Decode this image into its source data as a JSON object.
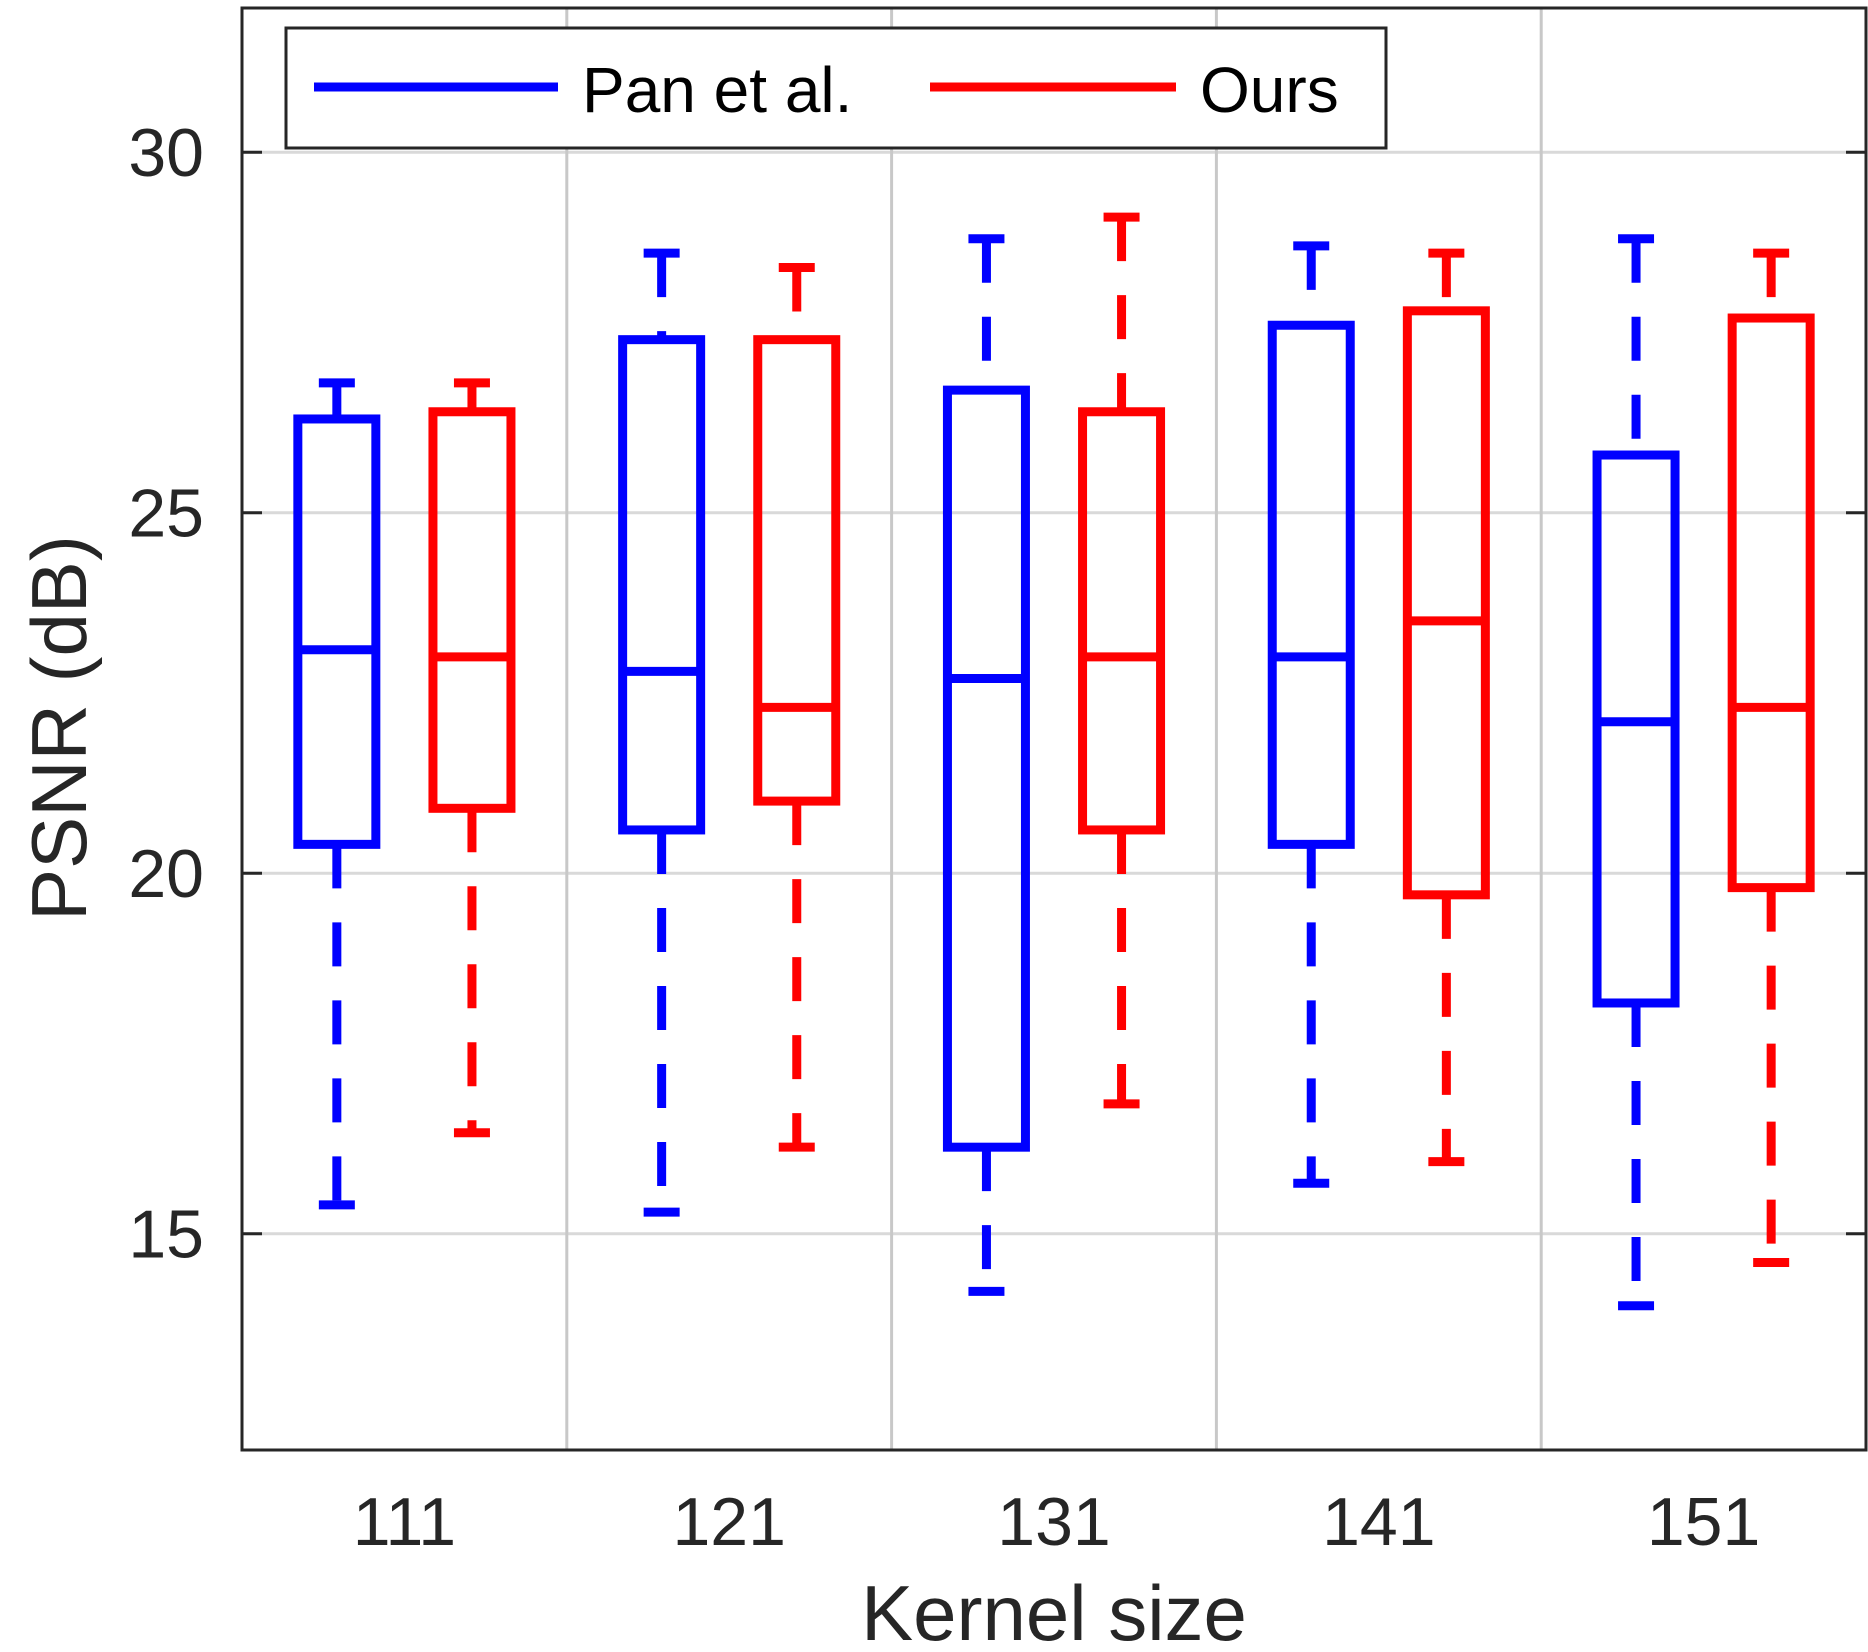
{
  "chart_data": {
    "type": "box",
    "xlabel": "Kernel size",
    "ylabel": "PSNR (dB)",
    "categories": [
      "111",
      "121",
      "131",
      "141",
      "151"
    ],
    "ylim": [
      12.0,
      32.0
    ],
    "yticks": [
      15,
      20,
      25,
      30
    ],
    "grid": true,
    "legend": {
      "placement": "top-left",
      "orientation": "horizontal"
    },
    "series": [
      {
        "name": "Pan et al.",
        "color": "#0000ff",
        "boxes": [
          {
            "min": 15.4,
            "q1": 20.4,
            "median": 23.1,
            "q3": 26.3,
            "max": 26.8
          },
          {
            "min": 15.3,
            "q1": 20.6,
            "median": 22.8,
            "q3": 27.4,
            "max": 28.6
          },
          {
            "min": 14.2,
            "q1": 16.2,
            "median": 22.7,
            "q3": 26.7,
            "max": 28.8
          },
          {
            "min": 15.7,
            "q1": 20.4,
            "median": 23.0,
            "q3": 27.6,
            "max": 28.7
          },
          {
            "min": 14.0,
            "q1": 18.2,
            "median": 22.1,
            "q3": 25.8,
            "max": 28.8
          }
        ]
      },
      {
        "name": "Ours",
        "color": "#ff0000",
        "boxes": [
          {
            "min": 16.4,
            "q1": 20.9,
            "median": 23.0,
            "q3": 26.4,
            "max": 26.8
          },
          {
            "min": 16.2,
            "q1": 21.0,
            "median": 22.3,
            "q3": 27.4,
            "max": 28.4
          },
          {
            "min": 16.8,
            "q1": 20.6,
            "median": 23.0,
            "q3": 26.4,
            "max": 29.1
          },
          {
            "min": 16.0,
            "q1": 19.7,
            "median": 23.5,
            "q3": 27.8,
            "max": 28.6
          },
          {
            "min": 14.6,
            "q1": 19.8,
            "median": 22.3,
            "q3": 27.7,
            "max": 28.6
          }
        ]
      }
    ]
  }
}
